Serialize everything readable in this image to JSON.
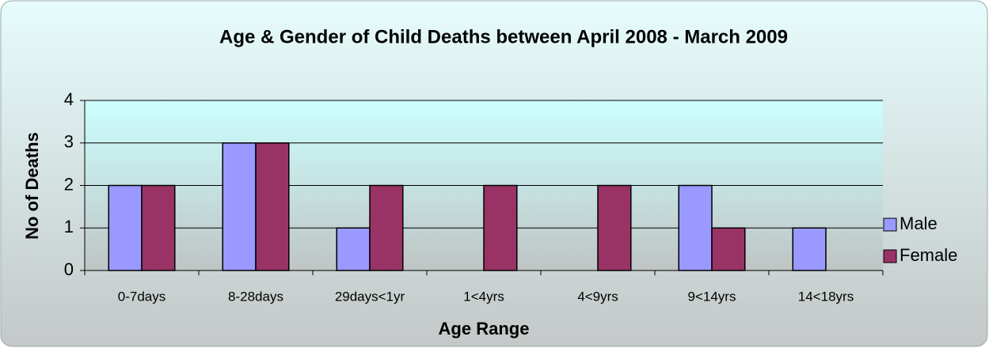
{
  "chart_data": {
    "type": "bar",
    "title": "Age & Gender of Child Deaths between April 2008 - March 2009",
    "xlabel": "Age Range",
    "ylabel": "No of Deaths",
    "categories": [
      "0-7days",
      "8-28days",
      "29days<1yr",
      "1<4yrs",
      "4<9yrs",
      "9<14yrs",
      "14<18yrs"
    ],
    "series": [
      {
        "name": "Male",
        "color": "#9999ff",
        "values": [
          2,
          3,
          1,
          0,
          0,
          2,
          1
        ]
      },
      {
        "name": "Female",
        "color": "#993366",
        "values": [
          2,
          3,
          2,
          2,
          2,
          1,
          0
        ]
      }
    ],
    "ylim": [
      0,
      4
    ],
    "yticks": [
      0,
      1,
      2,
      3,
      4
    ],
    "grid": true,
    "legend": "right"
  }
}
